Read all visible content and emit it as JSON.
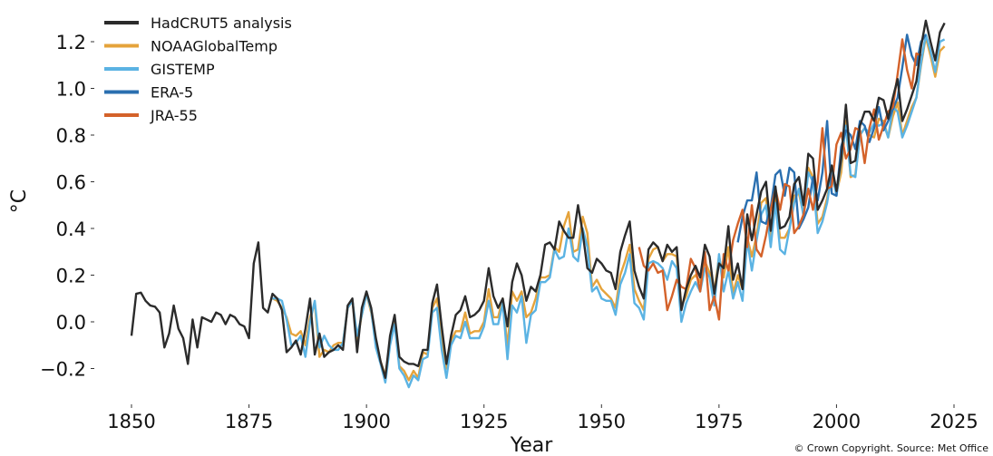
{
  "chart_data": {
    "type": "line",
    "title": "",
    "xlabel": "Year",
    "ylabel": "°C",
    "xlim": [
      1843,
      2026
    ],
    "ylim": [
      -0.32,
      1.32
    ],
    "xticks": [
      1850,
      1875,
      1900,
      1925,
      1950,
      1975,
      2000,
      2025
    ],
    "xtick_labels": [
      "1850",
      "1875",
      "1900",
      "1925",
      "1950",
      "1975",
      "2000",
      "2025"
    ],
    "yticks": [
      -0.2,
      0.0,
      0.2,
      0.4,
      0.6,
      0.8,
      1.0,
      1.2
    ],
    "ytick_labels": [
      "−0.2",
      "0.0",
      "0.2",
      "0.4",
      "0.6",
      "0.8",
      "1.0",
      "1.2"
    ],
    "grid": false,
    "legend_position": "top-left",
    "credit": "© Crown Copyright. Source: Met Office",
    "series": [
      {
        "name": "HadCRUT5 analysis",
        "color": "#2b2b2b",
        "start_year": 1850,
        "values": [
          -0.06,
          0.12,
          0.125,
          0.09,
          0.07,
          0.065,
          0.04,
          -0.11,
          -0.05,
          0.07,
          -0.03,
          -0.07,
          -0.18,
          0.01,
          -0.11,
          0.02,
          0.01,
          0.0,
          0.04,
          0.03,
          -0.01,
          0.03,
          0.02,
          -0.01,
          -0.02,
          -0.07,
          0.25,
          0.34,
          0.06,
          0.04,
          0.12,
          0.1,
          0.05,
          -0.13,
          -0.11,
          -0.08,
          -0.14,
          -0.03,
          0.1,
          -0.14,
          -0.05,
          -0.15,
          -0.13,
          -0.12,
          -0.1,
          -0.12,
          0.07,
          0.1,
          -0.13,
          0.06,
          0.13,
          0.06,
          -0.07,
          -0.17,
          -0.24,
          -0.06,
          0.03,
          -0.15,
          -0.17,
          -0.18,
          -0.18,
          -0.19,
          -0.12,
          -0.12,
          0.08,
          0.16,
          -0.02,
          -0.18,
          -0.06,
          0.03,
          0.05,
          0.11,
          0.02,
          0.03,
          0.05,
          0.09,
          0.23,
          0.11,
          0.06,
          0.1,
          -0.02,
          0.17,
          0.25,
          0.2,
          0.09,
          0.15,
          0.13,
          0.2,
          0.33,
          0.34,
          0.31,
          0.43,
          0.39,
          0.36,
          0.36,
          0.5,
          0.38,
          0.23,
          0.21,
          0.27,
          0.25,
          0.22,
          0.21,
          0.14,
          0.3,
          0.37,
          0.43,
          0.22,
          0.15,
          0.1,
          0.31,
          0.34,
          0.32,
          0.26,
          0.33,
          0.3,
          0.32,
          0.05,
          0.14,
          0.2,
          0.24,
          0.19,
          0.33,
          0.28,
          0.12,
          0.25,
          0.23,
          0.41,
          0.18,
          0.25,
          0.14,
          0.46,
          0.35,
          0.46,
          0.56,
          0.6,
          0.39,
          0.58,
          0.4,
          0.41,
          0.45,
          0.59,
          0.62,
          0.5,
          0.72,
          0.7,
          0.48,
          0.52,
          0.57,
          0.67,
          0.56,
          0.7,
          0.93,
          0.68,
          0.69,
          0.84,
          0.9,
          0.9,
          0.86,
          0.96,
          0.95,
          0.87,
          0.96,
          1.04,
          0.86,
          0.91,
          0.97,
          1.03,
          1.18,
          1.29,
          1.2,
          1.12,
          1.24,
          1.28
        ]
      },
      {
        "name": "NOAAGlobalTemp",
        "color": "#e5a33b",
        "start_year": 1880,
        "values": [
          0.1,
          0.09,
          0.06,
          0.02,
          -0.05,
          -0.06,
          -0.04,
          -0.1,
          0.02,
          0.08,
          -0.15,
          -0.12,
          -0.13,
          -0.1,
          -0.09,
          -0.09,
          0.06,
          0.09,
          -0.08,
          0.03,
          0.12,
          0.04,
          -0.08,
          -0.17,
          -0.23,
          -0.09,
          0.0,
          -0.19,
          -0.21,
          -0.25,
          -0.21,
          -0.24,
          -0.13,
          -0.14,
          0.06,
          0.1,
          -0.07,
          -0.2,
          -0.08,
          -0.04,
          -0.04,
          0.04,
          -0.05,
          -0.04,
          -0.04,
          0.0,
          0.14,
          0.02,
          0.02,
          0.1,
          -0.11,
          0.13,
          0.09,
          0.13,
          0.02,
          0.04,
          0.1,
          0.19,
          0.19,
          0.2,
          0.32,
          0.3,
          0.41,
          0.47,
          0.3,
          0.31,
          0.45,
          0.38,
          0.15,
          0.18,
          0.14,
          0.12,
          0.1,
          0.06,
          0.2,
          0.26,
          0.33,
          0.14,
          0.09,
          0.05,
          0.27,
          0.31,
          0.32,
          0.26,
          0.29,
          0.29,
          0.28,
          0.07,
          0.11,
          0.18,
          0.2,
          0.17,
          0.26,
          0.21,
          0.13,
          0.28,
          0.19,
          0.32,
          0.12,
          0.2,
          0.14,
          0.36,
          0.28,
          0.37,
          0.51,
          0.53,
          0.35,
          0.53,
          0.36,
          0.36,
          0.4,
          0.54,
          0.55,
          0.46,
          0.66,
          0.62,
          0.42,
          0.45,
          0.53,
          0.63,
          0.55,
          0.64,
          0.86,
          0.62,
          0.63,
          0.8,
          0.83,
          0.8,
          0.79,
          0.87,
          0.86,
          0.79,
          0.88,
          0.94,
          0.8,
          0.86,
          0.92,
          0.96,
          1.1,
          1.22,
          1.14,
          1.05,
          1.16,
          1.18
        ]
      },
      {
        "name": "GISTEMP",
        "color": "#5bb3e3",
        "start_year": 1880,
        "values": [
          0.1,
          0.1,
          0.09,
          0.01,
          -0.1,
          -0.09,
          -0.06,
          -0.15,
          0.0,
          0.09,
          -0.11,
          -0.06,
          -0.1,
          -0.12,
          -0.12,
          -0.09,
          0.06,
          0.09,
          -0.06,
          0.03,
          0.12,
          0.05,
          -0.11,
          -0.18,
          -0.26,
          -0.1,
          -0.01,
          -0.2,
          -0.23,
          -0.28,
          -0.23,
          -0.25,
          -0.16,
          -0.15,
          0.04,
          0.06,
          -0.12,
          -0.24,
          -0.1,
          -0.06,
          -0.07,
          0.0,
          -0.07,
          -0.07,
          -0.07,
          -0.02,
          0.09,
          -0.01,
          -0.01,
          0.08,
          -0.16,
          0.07,
          0.04,
          0.11,
          -0.09,
          0.03,
          0.05,
          0.17,
          0.17,
          0.19,
          0.31,
          0.27,
          0.28,
          0.4,
          0.28,
          0.26,
          0.4,
          0.32,
          0.13,
          0.15,
          0.1,
          0.09,
          0.09,
          0.03,
          0.16,
          0.21,
          0.29,
          0.08,
          0.06,
          0.01,
          0.25,
          0.26,
          0.25,
          0.23,
          0.18,
          0.26,
          0.23,
          0.0,
          0.08,
          0.13,
          0.17,
          0.13,
          0.23,
          0.19,
          0.07,
          0.29,
          0.13,
          0.22,
          0.1,
          0.17,
          0.09,
          0.35,
          0.22,
          0.35,
          0.46,
          0.5,
          0.32,
          0.51,
          0.31,
          0.29,
          0.4,
          0.51,
          0.57,
          0.45,
          0.64,
          0.6,
          0.38,
          0.43,
          0.51,
          0.64,
          0.54,
          0.69,
          0.84,
          0.63,
          0.62,
          0.8,
          0.83,
          0.81,
          0.85,
          0.84,
          0.85,
          0.79,
          0.92,
          0.9,
          0.79,
          0.84,
          0.9,
          0.96,
          1.11,
          1.23,
          1.16,
          1.07,
          1.2,
          1.21
        ]
      },
      {
        "name": "ERA-5",
        "color": "#2a6fb0",
        "start_year": 1979,
        "values": [
          0.34,
          0.45,
          0.52,
          0.52,
          0.64,
          0.43,
          0.42,
          0.49,
          0.63,
          0.65,
          0.54,
          0.66,
          0.64,
          0.4,
          0.44,
          0.49,
          0.62,
          0.52,
          0.64,
          0.86,
          0.55,
          0.54,
          0.75,
          0.82,
          0.8,
          0.74,
          0.86,
          0.84,
          0.77,
          0.83,
          0.92,
          0.82,
          0.86,
          0.91,
          0.96,
          1.09,
          1.23,
          1.14,
          1.1,
          1.2,
          1.23
        ]
      },
      {
        "name": "JRA-55",
        "color": "#d4622a",
        "start_year": 1958,
        "values": [
          0.32,
          0.24,
          0.22,
          0.25,
          0.21,
          0.22,
          0.05,
          0.11,
          0.18,
          0.15,
          0.14,
          0.27,
          0.23,
          0.13,
          0.3,
          0.05,
          0.11,
          0.01,
          0.29,
          0.22,
          0.35,
          0.42,
          0.48,
          0.32,
          0.5,
          0.31,
          0.28,
          0.37,
          0.48,
          0.57,
          0.48,
          0.59,
          0.58,
          0.38,
          0.41,
          0.46,
          0.57,
          0.48,
          0.6,
          0.83,
          0.57,
          0.58,
          0.76,
          0.81,
          0.7,
          0.74,
          0.83,
          0.82,
          0.68,
          0.83,
          0.91,
          0.78,
          0.84,
          0.9,
          0.92,
          1.06,
          1.21,
          1.08,
          1.0,
          1.15,
          1.14
        ]
      }
    ]
  }
}
